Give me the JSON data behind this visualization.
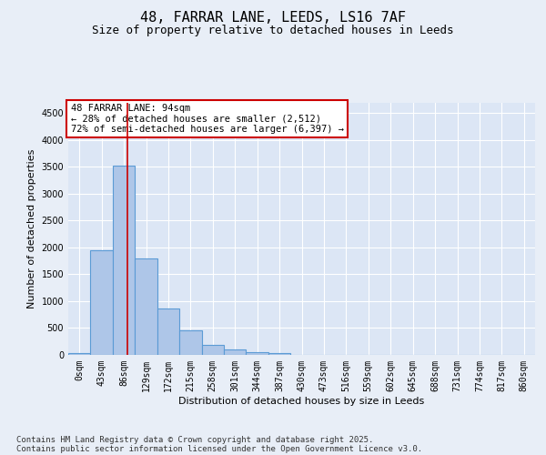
{
  "title_line1": "48, FARRAR LANE, LEEDS, LS16 7AF",
  "title_line2": "Size of property relative to detached houses in Leeds",
  "xlabel": "Distribution of detached houses by size in Leeds",
  "ylabel": "Number of detached properties",
  "categories": [
    "0sqm",
    "43sqm",
    "86sqm",
    "129sqm",
    "172sqm",
    "215sqm",
    "258sqm",
    "301sqm",
    "344sqm",
    "387sqm",
    "430sqm",
    "473sqm",
    "516sqm",
    "559sqm",
    "602sqm",
    "645sqm",
    "688sqm",
    "731sqm",
    "774sqm",
    "817sqm",
    "860sqm"
  ],
  "bar_values": [
    30,
    1950,
    3520,
    1800,
    860,
    460,
    185,
    95,
    50,
    30,
    0,
    0,
    0,
    0,
    0,
    0,
    0,
    0,
    0,
    0,
    0
  ],
  "bar_color": "#aec6e8",
  "bar_edge_color": "#5b9bd5",
  "bar_edge_width": 0.8,
  "vline_x": 2.18,
  "vline_color": "#cc0000",
  "annotation_text": "48 FARRAR LANE: 94sqm\n← 28% of detached houses are smaller (2,512)\n72% of semi-detached houses are larger (6,397) →",
  "annotation_box_color": "#cc0000",
  "annotation_box_fill": "#ffffff",
  "ylim": [
    0,
    4700
  ],
  "yticks": [
    0,
    500,
    1000,
    1500,
    2000,
    2500,
    3000,
    3500,
    4000,
    4500
  ],
  "background_color": "#e8eef7",
  "plot_bg_color": "#dce6f5",
  "grid_color": "#ffffff",
  "footer_line1": "Contains HM Land Registry data © Crown copyright and database right 2025.",
  "footer_line2": "Contains public sector information licensed under the Open Government Licence v3.0.",
  "title_fontsize": 11,
  "subtitle_fontsize": 9,
  "axis_label_fontsize": 8,
  "tick_fontsize": 7,
  "annotation_fontsize": 7.5,
  "footer_fontsize": 6.5
}
